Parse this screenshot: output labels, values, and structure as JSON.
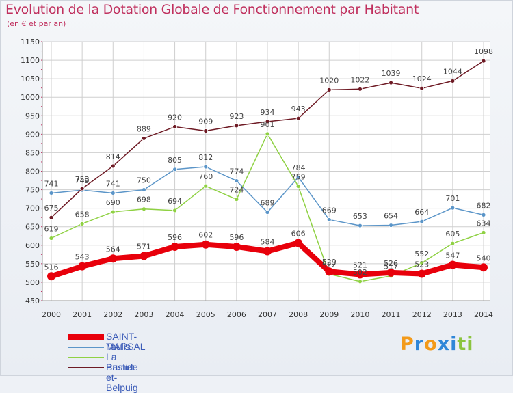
{
  "title": "Evolution de la Dotation Globale de Fonctionnement par Habitant",
  "subtitle": "(en € et par an)",
  "logo_text": "Proxiti",
  "chart_data": {
    "type": "line",
    "x": [
      "2000",
      "2001",
      "2002",
      "2003",
      "2004",
      "2005",
      "2006",
      "2007",
      "2008",
      "2009",
      "2010",
      "2011",
      "2012",
      "2013",
      "2014"
    ],
    "ylim": [
      450,
      1150
    ],
    "yticks": [
      450,
      500,
      550,
      600,
      650,
      700,
      750,
      800,
      850,
      900,
      950,
      1000,
      1050,
      1100,
      1150
    ],
    "grid": true,
    "legend_position": "bottom-left",
    "series": [
      {
        "name": "SAINT-MARSAL",
        "color": "#e8000b",
        "width": 8,
        "values": [
          516,
          543,
          564,
          571,
          596,
          602,
          596,
          584,
          606,
          529,
          521,
          526,
          523,
          547,
          540
        ],
        "labels": [
          "516",
          "543",
          "564",
          "571",
          "596",
          "602",
          "596",
          "584",
          "606",
          "529",
          "521",
          "526",
          "523",
          "547",
          "540"
        ]
      },
      {
        "name": "Taulis",
        "color": "#5b95c8",
        "width": 1.5,
        "values": [
          741,
          749,
          741,
          750,
          805,
          812,
          774,
          689,
          784,
          669,
          653,
          654,
          664,
          701,
          682
        ],
        "labels": [
          "741",
          "749",
          "741",
          "750",
          "805",
          "812",
          "774",
          "689",
          "784",
          "669",
          "653",
          "654",
          "664",
          "701",
          "682"
        ]
      },
      {
        "name": "La Bastide",
        "color": "#8fd143",
        "width": 1.5,
        "values": [
          619,
          658,
          690,
          698,
          694,
          760,
          724,
          901,
          759,
          522,
          502,
          517,
          552,
          605,
          634
        ],
        "labels": [
          "619",
          "658",
          "690",
          "698",
          "694",
          "760",
          "724",
          "901",
          "759",
          "522",
          "502",
          "517",
          "552",
          "605",
          "634"
        ]
      },
      {
        "name": "Prunet-et-Belpuig",
        "color": "#6e1a24",
        "width": 1.5,
        "values": [
          675,
          753,
          814,
          889,
          920,
          909,
          923,
          934,
          943,
          1020,
          1022,
          1039,
          1024,
          1044,
          1098
        ],
        "labels": [
          "675",
          "753",
          "814",
          "889",
          "920",
          "909",
          "923",
          "934",
          "943",
          "1020",
          "1022",
          "1039",
          "1024",
          "1044",
          "1098"
        ]
      }
    ]
  },
  "logo_colors": [
    "#f39a1a",
    "#2f86d8",
    "#f39a1a",
    "#2f86d8",
    "#2f86d8",
    "#8bc43f",
    "#8bc43f"
  ]
}
